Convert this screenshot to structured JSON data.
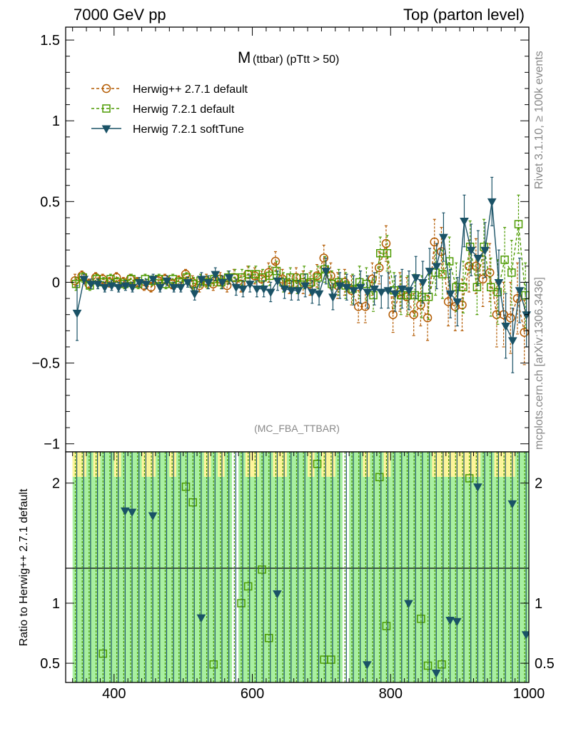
{
  "header": {
    "left": "7000 GeV pp",
    "right": "Top (parton level)"
  },
  "side_labels": {
    "rivet": "Rivet 3.1.10, ≥ 100k events",
    "mcplots": "mcplots.cern.ch [arXiv:1306.3436]"
  },
  "plot_title": {
    "main": "M",
    "sub": "(ttbar) (pTtt > 50)"
  },
  "analysis_label": "(MC_FBA_TTBAR)",
  "legend": [
    {
      "label": "Herwig++ 2.7.1 default",
      "color": "#b35a00",
      "marker": "circle",
      "dash": "dashed"
    },
    {
      "label": "Herwig 7.2.1 default",
      "color": "#4c9a00",
      "marker": "square",
      "dash": "dashed"
    },
    {
      "label": "Herwig 7.2.1 softTune",
      "color": "#1a5266",
      "marker": "triangle-down",
      "dash": "solid"
    }
  ],
  "ratio_ylabel": "Ratio to Herwig++ 2.7.1 default",
  "chart_data": {
    "type": "line",
    "xlim": [
      330,
      1000
    ],
    "ylim": [
      -1.05,
      1.58
    ],
    "ratio_ylim": [
      0.34,
      2.26
    ],
    "x_ticks": [
      400,
      600,
      800,
      1000
    ],
    "y_ticks": [
      -1,
      -0.5,
      0,
      0.5,
      1,
      1.5
    ],
    "y_tick_labels": [
      "−1",
      "−0.5",
      "0",
      "0.5",
      "1",
      "1.5"
    ],
    "ratio_y_ticks": [
      0.5,
      1,
      2
    ],
    "x": [
      345,
      355,
      365,
      375,
      385,
      395,
      405,
      415,
      425,
      435,
      445,
      455,
      465,
      475,
      485,
      495,
      505,
      515,
      525,
      535,
      545,
      555,
      565,
      575,
      585,
      595,
      605,
      615,
      625,
      635,
      645,
      655,
      665,
      675,
      685,
      695,
      705,
      715,
      725,
      735,
      745,
      755,
      765,
      775,
      785,
      795,
      805,
      815,
      825,
      835,
      845,
      855,
      865,
      875,
      885,
      895,
      905,
      915,
      925,
      935,
      945,
      955,
      965,
      975,
      985,
      995
    ],
    "series": [
      {
        "name": "Herwig++ 2.7.1 default",
        "values": [
          0.01,
          0.04,
          -0.01,
          0.03,
          0.02,
          0.0,
          0.03,
          0.0,
          0.02,
          0.0,
          -0.02,
          -0.03,
          0.01,
          0.02,
          -0.01,
          0.01,
          0.05,
          0.0,
          -0.02,
          0.01,
          -0.01,
          0.02,
          -0.02,
          0.03,
          -0.01,
          0.05,
          0.04,
          0.02,
          0.06,
          0.13,
          0.02,
          -0.01,
          0.03,
          0.0,
          -0.01,
          0.04,
          0.15,
          0.04,
          -0.02,
          0.0,
          -0.05,
          -0.15,
          -0.15,
          0.02,
          0.09,
          0.24,
          -0.2,
          -0.06,
          -0.09,
          -0.2,
          -0.14,
          -0.22,
          0.25,
          0.19,
          -0.12,
          -0.15,
          -0.14,
          0.1,
          0.1,
          0.02,
          0.06,
          -0.2,
          -0.2,
          -0.22,
          -0.1,
          -0.31
        ],
        "errors": [
          0.04,
          0.03,
          0.03,
          0.03,
          0.03,
          0.03,
          0.03,
          0.03,
          0.03,
          0.03,
          0.03,
          0.03,
          0.03,
          0.03,
          0.03,
          0.03,
          0.03,
          0.04,
          0.04,
          0.04,
          0.04,
          0.04,
          0.04,
          0.05,
          0.05,
          0.05,
          0.05,
          0.05,
          0.06,
          0.06,
          0.06,
          0.06,
          0.06,
          0.07,
          0.07,
          0.07,
          0.08,
          0.08,
          0.08,
          0.08,
          0.09,
          0.1,
          0.1,
          0.1,
          0.1,
          0.11,
          0.11,
          0.12,
          0.12,
          0.13,
          0.13,
          0.14,
          0.14,
          0.15,
          0.15,
          0.15,
          0.16,
          0.16,
          0.17,
          0.17,
          0.18,
          0.2,
          0.2,
          0.22,
          0.22,
          0.2
        ]
      },
      {
        "name": "Herwig 7.2.1 default",
        "values": [
          -0.01,
          0.03,
          -0.02,
          0.02,
          0.0,
          0.02,
          0.0,
          -0.01,
          0.02,
          -0.01,
          0.02,
          0.01,
          0.02,
          -0.01,
          0.02,
          0.0,
          0.03,
          -0.01,
          0.01,
          0.0,
          0.02,
          0.0,
          0.03,
          0.03,
          0.03,
          0.05,
          0.05,
          0.03,
          0.04,
          0.07,
          0.0,
          0.03,
          -0.01,
          0.03,
          0.0,
          0.03,
          0.08,
          -0.01,
          0.0,
          -0.02,
          -0.04,
          0.0,
          -0.01,
          -0.08,
          0.18,
          0.18,
          -0.05,
          -0.08,
          -0.08,
          -0.08,
          -0.09,
          -0.09,
          0.06,
          0.05,
          0.13,
          -0.03,
          -0.03,
          0.22,
          -0.03,
          0.22,
          -0.03,
          -0.06,
          0.14,
          0.06,
          0.36,
          -0.08
        ],
        "errors": [
          0.04,
          0.03,
          0.03,
          0.03,
          0.03,
          0.03,
          0.03,
          0.03,
          0.03,
          0.03,
          0.03,
          0.03,
          0.03,
          0.03,
          0.03,
          0.03,
          0.03,
          0.04,
          0.04,
          0.04,
          0.04,
          0.04,
          0.04,
          0.05,
          0.05,
          0.05,
          0.05,
          0.05,
          0.06,
          0.06,
          0.06,
          0.06,
          0.06,
          0.07,
          0.07,
          0.07,
          0.08,
          0.08,
          0.08,
          0.08,
          0.09,
          0.1,
          0.1,
          0.1,
          0.1,
          0.11,
          0.11,
          0.12,
          0.12,
          0.13,
          0.13,
          0.14,
          0.14,
          0.15,
          0.15,
          0.15,
          0.16,
          0.16,
          0.17,
          0.17,
          0.18,
          0.2,
          0.2,
          0.2,
          0.18,
          0.2
        ]
      },
      {
        "name": "Herwig 7.2.1 softTune",
        "values": [
          -0.19,
          0.02,
          -0.01,
          -0.01,
          -0.03,
          -0.02,
          -0.03,
          -0.02,
          -0.03,
          0.0,
          -0.01,
          0.02,
          -0.03,
          0.01,
          -0.03,
          -0.03,
          0.0,
          -0.07,
          0.02,
          0.0,
          0.05,
          0.0,
          0.03,
          -0.03,
          -0.04,
          -0.01,
          -0.04,
          -0.04,
          -0.06,
          0.01,
          -0.04,
          -0.05,
          -0.05,
          -0.02,
          -0.06,
          -0.07,
          0.07,
          -0.09,
          -0.02,
          -0.03,
          -0.05,
          -0.03,
          -0.06,
          -0.04,
          -0.06,
          -0.05,
          -0.07,
          -0.04,
          -0.05,
          0.03,
          0.0,
          0.07,
          0.1,
          0.28,
          -0.07,
          -0.12,
          0.38,
          0.2,
          0.15,
          0.2,
          0.5,
          0.0,
          -0.27,
          -0.36,
          -0.05,
          -0.2
        ],
        "errors": [
          0.17,
          0.03,
          0.03,
          0.03,
          0.03,
          0.03,
          0.03,
          0.03,
          0.03,
          0.03,
          0.03,
          0.03,
          0.03,
          0.03,
          0.03,
          0.03,
          0.03,
          0.04,
          0.04,
          0.04,
          0.04,
          0.04,
          0.04,
          0.05,
          0.05,
          0.05,
          0.05,
          0.05,
          0.06,
          0.06,
          0.06,
          0.06,
          0.06,
          0.07,
          0.07,
          0.07,
          0.08,
          0.08,
          0.08,
          0.08,
          0.09,
          0.1,
          0.1,
          0.1,
          0.1,
          0.11,
          0.11,
          0.12,
          0.12,
          0.13,
          0.13,
          0.14,
          0.14,
          0.15,
          0.15,
          0.15,
          0.16,
          0.16,
          0.17,
          0.17,
          0.15,
          0.2,
          0.2,
          0.2,
          0.2,
          0.2
        ]
      }
    ],
    "ratio_series": [
      {
        "name": "Herwig 7.2.1 default",
        "values": [
          null,
          null,
          null,
          null,
          0.58,
          null,
          null,
          null,
          null,
          null,
          null,
          null,
          null,
          null,
          null,
          null,
          1.97,
          1.84,
          null,
          null,
          0.49,
          null,
          null,
          null,
          1.0,
          1.14,
          null,
          1.28,
          0.71,
          null,
          null,
          null,
          null,
          null,
          null,
          2.16,
          0.53,
          0.53,
          null,
          null,
          null,
          null,
          null,
          null,
          2.05,
          0.81,
          null,
          null,
          null,
          null,
          0.87,
          0.48,
          null,
          0.49,
          null,
          null,
          null,
          2.04,
          null,
          null,
          null,
          null,
          null,
          null,
          null,
          null
        ]
      },
      {
        "name": "Herwig 7.2.1 softTune",
        "values": [
          null,
          null,
          null,
          null,
          null,
          null,
          null,
          1.77,
          1.76,
          null,
          null,
          1.73,
          null,
          null,
          null,
          null,
          null,
          null,
          0.88,
          null,
          null,
          null,
          null,
          null,
          null,
          null,
          null,
          null,
          null,
          1.08,
          null,
          null,
          null,
          null,
          null,
          null,
          null,
          null,
          null,
          null,
          null,
          null,
          0.49,
          null,
          null,
          null,
          null,
          null,
          1.0,
          null,
          null,
          null,
          0.42,
          null,
          0.86,
          0.85,
          null,
          null,
          1.97,
          null,
          null,
          null,
          null,
          1.83,
          null,
          0.74
        ]
      }
    ],
    "ratio_bands": {
      "x": [
        345,
        355,
        365,
        375,
        385,
        395,
        405,
        415,
        425,
        435,
        445,
        455,
        465,
        475,
        485,
        495,
        505,
        515,
        525,
        535,
        545,
        555,
        565,
        575,
        585,
        595,
        605,
        615,
        625,
        635,
        645,
        655,
        665,
        675,
        685,
        695,
        705,
        715,
        725,
        735,
        745,
        755,
        765,
        775,
        785,
        795,
        805,
        815,
        825,
        835,
        845,
        855,
        865,
        875,
        885,
        895,
        905,
        915,
        925,
        935,
        945,
        955,
        965,
        975,
        985,
        995
      ],
      "green": [
        1,
        1,
        1,
        1,
        1,
        1,
        1,
        1,
        1,
        1,
        1,
        1,
        1,
        1,
        1,
        1,
        1,
        1,
        1,
        1,
        1,
        1,
        1,
        0,
        1,
        1,
        1,
        1,
        1,
        1,
        1,
        1,
        1,
        1,
        1,
        1,
        1,
        1,
        1,
        0,
        1,
        1,
        1,
        1,
        1,
        1,
        1,
        1,
        1,
        1,
        1,
        1,
        1,
        1,
        1,
        1,
        1,
        1,
        1,
        1,
        1,
        1,
        1,
        1,
        1,
        1
      ],
      "yellow_top": [
        1,
        1,
        0,
        1,
        0,
        0,
        1,
        0,
        0,
        0,
        1,
        1,
        0,
        0,
        1,
        0,
        0,
        0,
        0,
        1,
        0,
        1,
        0,
        0,
        0,
        1,
        1,
        0,
        0,
        1,
        1,
        0,
        0,
        0,
        1,
        0,
        1,
        1,
        0,
        0,
        0,
        0,
        1,
        0,
        0,
        1,
        0,
        0,
        0,
        0,
        0,
        0,
        1,
        1,
        1,
        1,
        1,
        1,
        1,
        0,
        0,
        1,
        1,
        1,
        0,
        0
      ]
    }
  }
}
